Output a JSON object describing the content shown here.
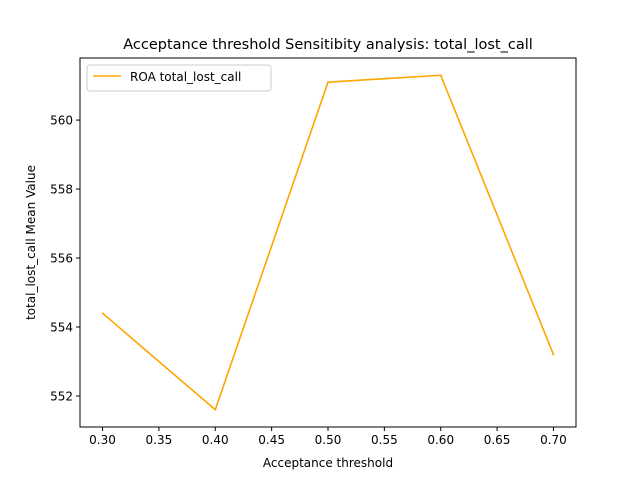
{
  "chart_data": {
    "type": "line",
    "title": "Acceptance threshold Sensitibity analysis: total_lost_call",
    "xlabel": "Acceptance threshold",
    "ylabel": "total_lost_call Mean Value",
    "x": [
      0.3,
      0.4,
      0.5,
      0.6,
      0.7
    ],
    "x_ticks": [
      "0.30",
      "0.35",
      "0.40",
      "0.45",
      "0.50",
      "0.55",
      "0.60",
      "0.65",
      "0.70"
    ],
    "x_tick_values": [
      0.3,
      0.35,
      0.4,
      0.45,
      0.5,
      0.55,
      0.6,
      0.65,
      0.7
    ],
    "y_ticks": [
      "552",
      "554",
      "556",
      "558",
      "560"
    ],
    "y_tick_values": [
      552,
      554,
      556,
      558,
      560
    ],
    "xlim": [
      0.28,
      0.72
    ],
    "ylim": [
      551.1,
      561.8
    ],
    "grid": false,
    "legend_position": "upper left",
    "series": [
      {
        "name": "ROA total_lost_call",
        "color": "#ffa500",
        "values": [
          554.4,
          551.6,
          561.1,
          561.3,
          553.2
        ]
      }
    ]
  }
}
